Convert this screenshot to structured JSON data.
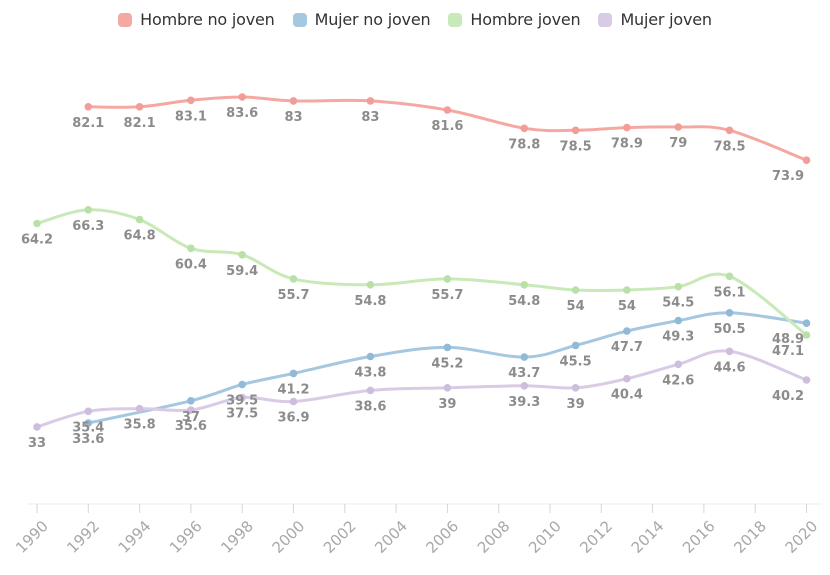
{
  "legend": {
    "items": [
      {
        "label": "Hombre no joven",
        "slug": "hombre-no-joven",
        "color": "#f5a8a2"
      },
      {
        "label": "Mujer no joven",
        "slug": "mujer-no-joven",
        "color": "#a5c7e0"
      },
      {
        "label": "Hombre joven",
        "slug": "hombre-joven",
        "color": "#c8e9b8"
      },
      {
        "label": "Mujer joven",
        "slug": "mujer-joven",
        "color": "#d9cbe5"
      }
    ]
  },
  "chart_data": {
    "type": "line",
    "title": "",
    "xlabel": "",
    "ylabel": "",
    "x_range": [
      1990,
      2020
    ],
    "ylim": [
      20,
      90
    ],
    "grid": false,
    "legend_position": "top",
    "smooth": true,
    "x_tick_labels": [
      "1990",
      "1992",
      "1994",
      "1996",
      "1998",
      "2000",
      "2002",
      "2004",
      "2006",
      "2008",
      "2010",
      "2012",
      "2014",
      "2016",
      "2018",
      "2020"
    ],
    "value_label_color": "#8c8c8c",
    "axis_label_color": "#a8a8a8",
    "axis_line_color": "#ececec",
    "tick_color": "#d6d6d6",
    "series": [
      {
        "name": "Hombre no joven",
        "slug": "hombre-no-joven",
        "color": "#f5a8a2",
        "dot_color": "#f29d98",
        "points": [
          [
            1992,
            82.1,
            "82.1"
          ],
          [
            1994,
            82.1,
            "82.1"
          ],
          [
            1996,
            83.1,
            "83.1"
          ],
          [
            1998,
            83.6,
            "83.6"
          ],
          [
            2000,
            83,
            "83"
          ],
          [
            2003,
            83,
            "83"
          ],
          [
            2006,
            81.6,
            "81.6"
          ],
          [
            2009,
            78.8,
            "78.8"
          ],
          [
            2011,
            78.5,
            "78.5"
          ],
          [
            2013,
            78.9,
            "78.9"
          ],
          [
            2015,
            79,
            "79"
          ],
          [
            2017,
            78.5,
            "78.5"
          ],
          [
            2020,
            73.9,
            "73.9"
          ]
        ]
      },
      {
        "name": "Mujer no joven",
        "slug": "mujer-no-joven",
        "color": "#a5c7e0",
        "dot_color": "#90bad6",
        "points": [
          [
            1992,
            33.6,
            "33.6"
          ],
          [
            1996,
            37,
            "37"
          ],
          [
            1998,
            39.5,
            "39.5"
          ],
          [
            2000,
            41.2,
            "41.2"
          ],
          [
            2003,
            43.8,
            "43.8"
          ],
          [
            2006,
            45.2,
            "45.2"
          ],
          [
            2009,
            43.7,
            "43.7"
          ],
          [
            2011,
            45.5,
            "45.5"
          ],
          [
            2013,
            47.7,
            "47.7"
          ],
          [
            2015,
            49.3,
            "49.3"
          ],
          [
            2017,
            50.5,
            "50.5"
          ],
          [
            2020,
            48.9,
            "48.9"
          ]
        ]
      },
      {
        "name": "Hombre joven",
        "slug": "hombre-joven",
        "color": "#c8e9b8",
        "dot_color": "#b9e0a6",
        "points": [
          [
            1990,
            64.2,
            "64.2"
          ],
          [
            1992,
            66.3,
            "66.3"
          ],
          [
            1994,
            64.8,
            "64.8"
          ],
          [
            1996,
            60.4,
            "60.4"
          ],
          [
            1998,
            59.4,
            "59.4"
          ],
          [
            2000,
            55.7,
            "55.7"
          ],
          [
            2003,
            54.8,
            "54.8"
          ],
          [
            2006,
            55.7,
            "55.7"
          ],
          [
            2009,
            54.8,
            "54.8"
          ],
          [
            2011,
            54,
            "54"
          ],
          [
            2013,
            54,
            "54"
          ],
          [
            2015,
            54.5,
            "54.5"
          ],
          [
            2017,
            56.1,
            "56.1"
          ],
          [
            2020,
            47.1,
            "47.1"
          ]
        ]
      },
      {
        "name": "Mujer joven",
        "slug": "mujer-joven",
        "color": "#d9cbe5",
        "dot_color": "#cebddd",
        "points": [
          [
            1990,
            33,
            "33"
          ],
          [
            1992,
            35.4,
            "35.4"
          ],
          [
            1994,
            35.8,
            "35.8"
          ],
          [
            1996,
            35.6,
            "35.6"
          ],
          [
            1998,
            37.5,
            "37.5"
          ],
          [
            2000,
            36.9,
            "36.9"
          ],
          [
            2003,
            38.6,
            "38.6"
          ],
          [
            2006,
            39,
            "39"
          ],
          [
            2009,
            39.3,
            "39.3"
          ],
          [
            2011,
            39,
            "39"
          ],
          [
            2013,
            40.4,
            "40.4"
          ],
          [
            2015,
            42.6,
            "42.6"
          ],
          [
            2017,
            44.6,
            "44.6"
          ],
          [
            2020,
            40.2,
            "40.2"
          ]
        ]
      }
    ]
  }
}
